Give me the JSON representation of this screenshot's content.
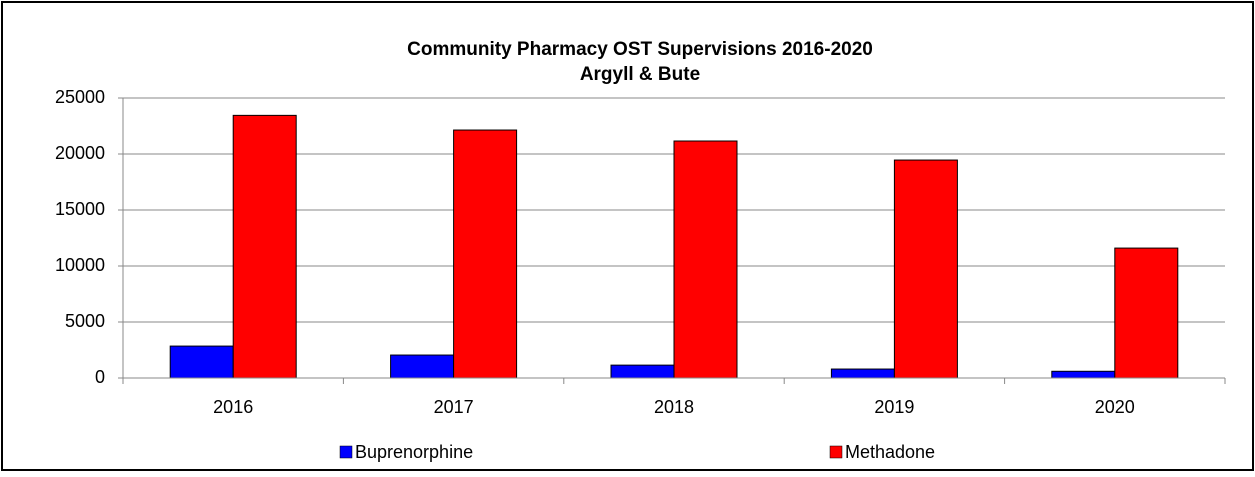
{
  "chart_data": {
    "type": "bar",
    "title": "Community Pharmacy OST Supervisions 2016-2020",
    "subtitle": "Argyll & Bute",
    "categories": [
      "2016",
      "2017",
      "2018",
      "2019",
      "2020"
    ],
    "series": [
      {
        "name": "Buprenorphine",
        "color": "#0000ff",
        "values": [
          2850,
          2050,
          1150,
          800,
          600
        ]
      },
      {
        "name": "Methadone",
        "color": "#ff0000",
        "values": [
          23450,
          22140,
          21160,
          19460,
          11600
        ]
      }
    ],
    "ylim": [
      0,
      25000
    ],
    "yticks": [
      0,
      5000,
      10000,
      15000,
      20000,
      25000
    ],
    "grid": true,
    "legend": "bottom"
  }
}
